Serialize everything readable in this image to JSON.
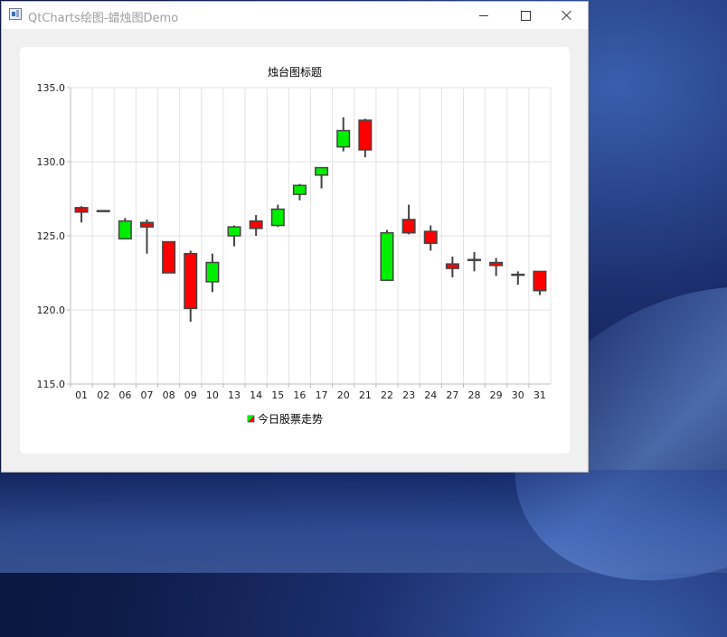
{
  "window": {
    "title": "QtCharts绘图-蜡烛图Demo"
  },
  "chart_data": {
    "type": "candlestick",
    "title": "烛台图标题",
    "categories": [
      "01",
      "02",
      "06",
      "07",
      "08",
      "09",
      "10",
      "13",
      "14",
      "15",
      "16",
      "17",
      "20",
      "21",
      "22",
      "23",
      "24",
      "27",
      "28",
      "29",
      "30",
      "31"
    ],
    "ylim": [
      115,
      135
    ],
    "yticks": [
      "135.0",
      "130.0",
      "125.0",
      "120.0",
      "115.0"
    ],
    "grid": true,
    "legend": {
      "label": "今日股票走势",
      "position": "bottom"
    },
    "increasing_color": "#00ee00",
    "decreasing_color": "#ff0000",
    "series": [
      {
        "data": [
          {
            "open": 126.9,
            "high": 127.0,
            "low": 125.9,
            "close": 126.6
          },
          {
            "open": 126.7,
            "high": 126.7,
            "low": 126.7,
            "close": 126.7
          },
          {
            "open": 124.8,
            "high": 126.2,
            "low": 124.8,
            "close": 126.0
          },
          {
            "open": 125.9,
            "high": 126.1,
            "low": 123.8,
            "close": 125.6
          },
          {
            "open": 124.6,
            "high": 124.6,
            "low": 122.5,
            "close": 122.5
          },
          {
            "open": 123.8,
            "high": 124.0,
            "low": 119.2,
            "close": 120.1
          },
          {
            "open": 121.9,
            "high": 123.8,
            "low": 121.2,
            "close": 123.2
          },
          {
            "open": 125.0,
            "high": 125.7,
            "low": 124.3,
            "close": 125.6
          },
          {
            "open": 126.0,
            "high": 126.4,
            "low": 125.0,
            "close": 125.5
          },
          {
            "open": 125.7,
            "high": 127.1,
            "low": 125.6,
            "close": 126.8
          },
          {
            "open": 127.8,
            "high": 128.5,
            "low": 127.4,
            "close": 128.4
          },
          {
            "open": 129.1,
            "high": 129.6,
            "low": 128.2,
            "close": 129.6
          },
          {
            "open": 131.0,
            "high": 133.0,
            "low": 130.7,
            "close": 132.1
          },
          {
            "open": 132.8,
            "high": 132.9,
            "low": 130.3,
            "close": 130.8
          },
          {
            "open": 122.0,
            "high": 125.4,
            "low": 122.0,
            "close": 125.2
          },
          {
            "open": 126.1,
            "high": 127.1,
            "low": 125.1,
            "close": 125.2
          },
          {
            "open": 125.3,
            "high": 125.7,
            "low": 124.0,
            "close": 124.5
          },
          {
            "open": 123.1,
            "high": 123.6,
            "low": 122.2,
            "close": 122.8
          },
          {
            "open": 123.4,
            "high": 123.9,
            "low": 122.6,
            "close": 123.4
          },
          {
            "open": 123.2,
            "high": 123.5,
            "low": 122.3,
            "close": 123.0
          },
          {
            "open": 122.4,
            "high": 122.6,
            "low": 121.7,
            "close": 122.4
          },
          {
            "open": 122.6,
            "high": 122.6,
            "low": 121.0,
            "close": 121.3
          }
        ]
      }
    ]
  }
}
